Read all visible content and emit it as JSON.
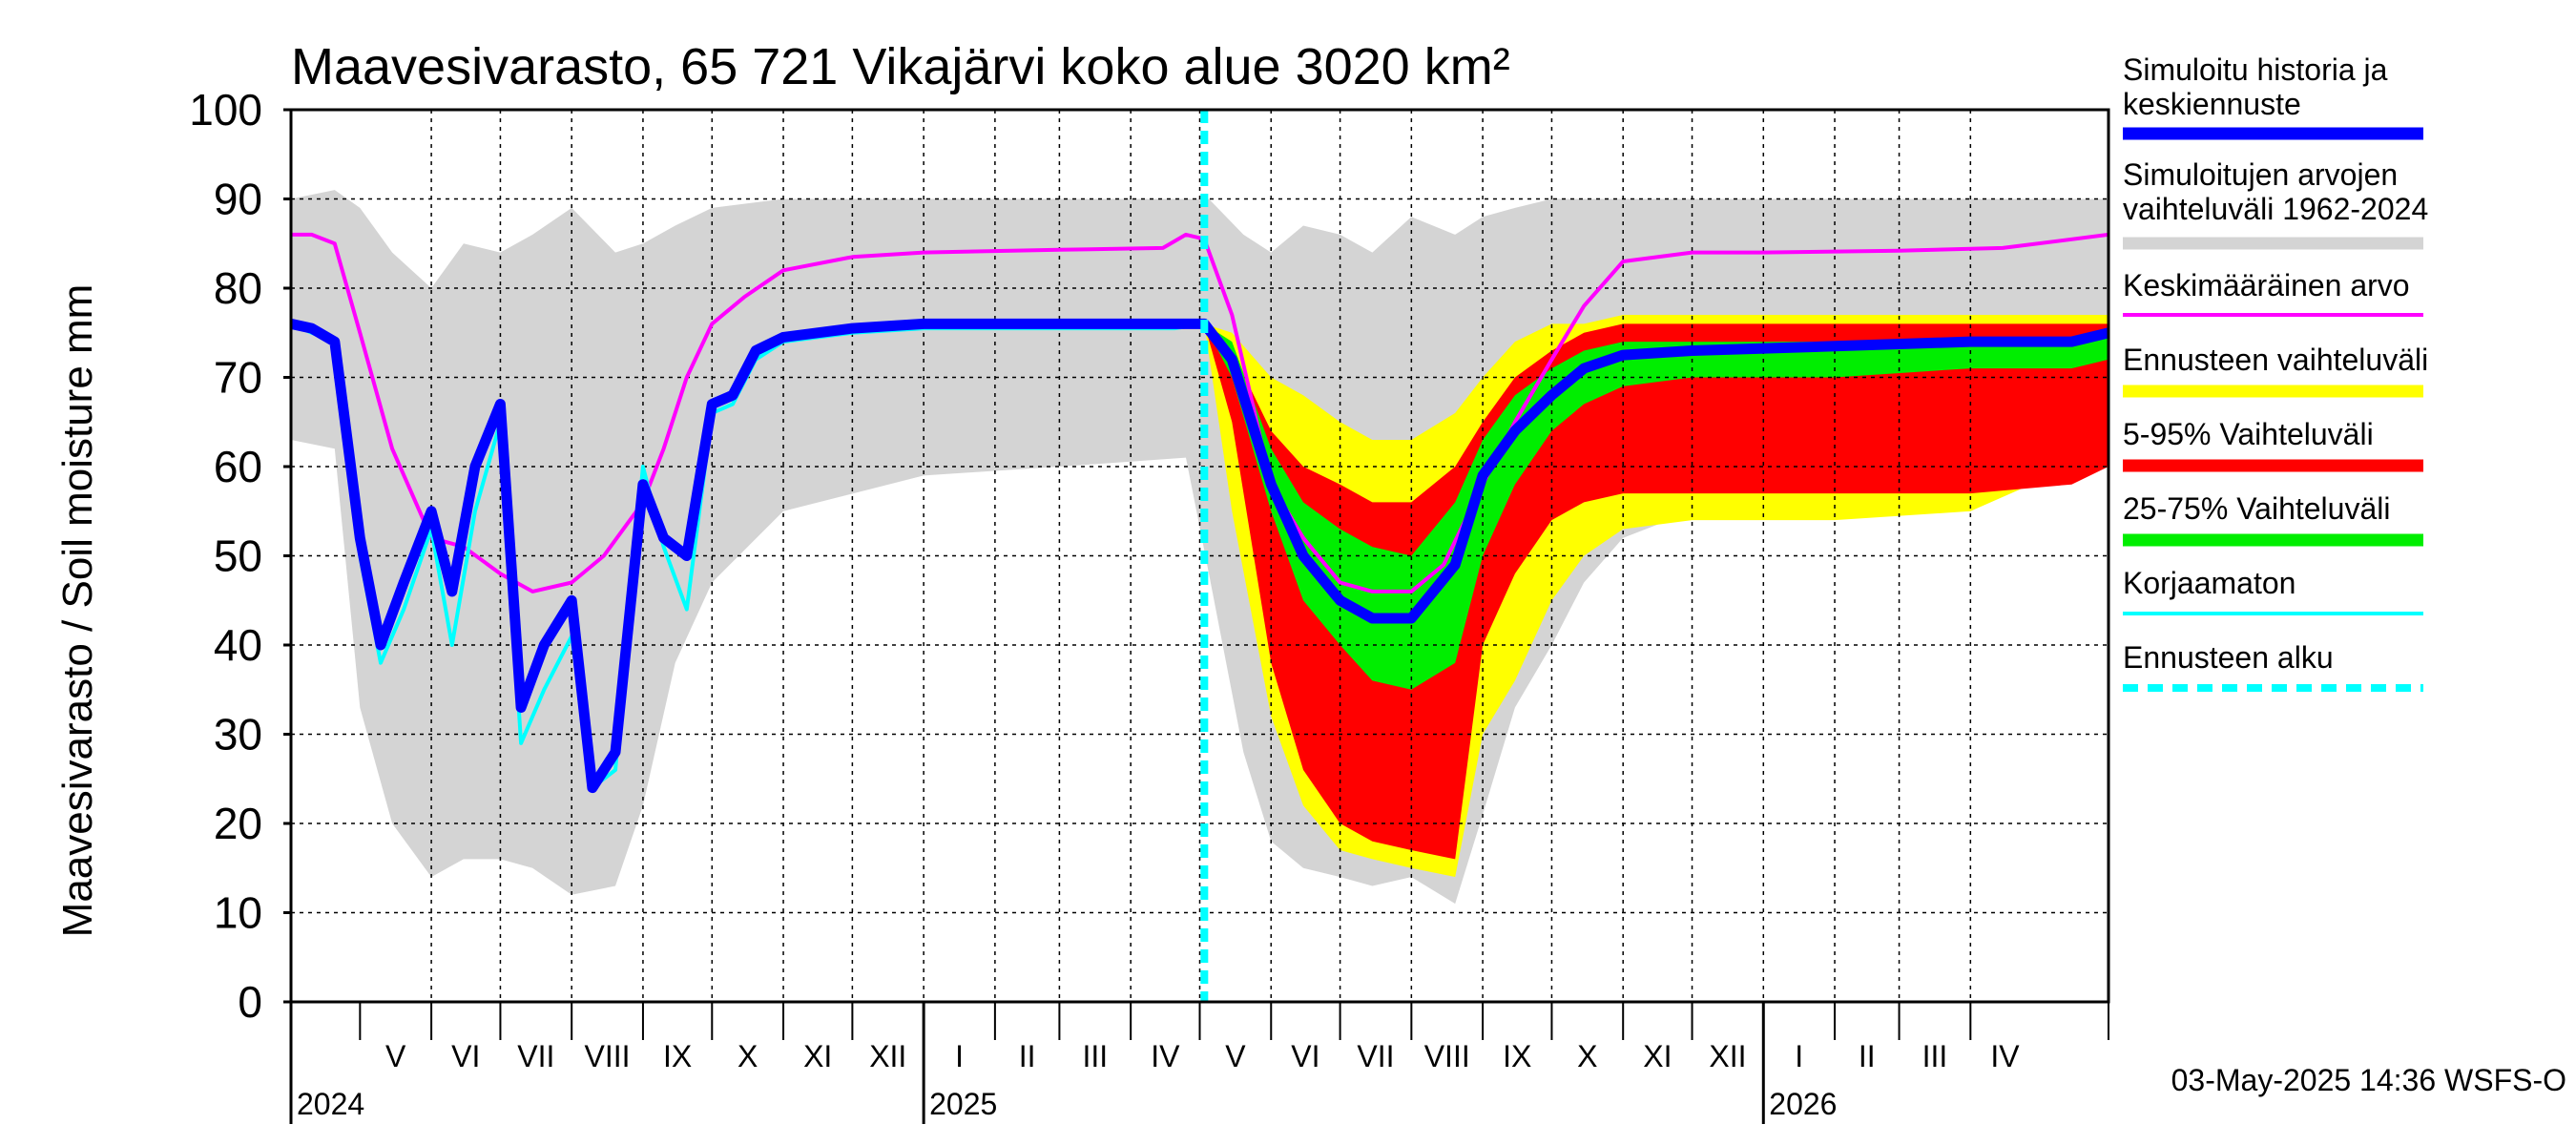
{
  "chart_data": {
    "type": "area",
    "title": "Maavesivarasto, 65 721 Vikajärvi koko alue 3020 km²",
    "ylabel": "Maavesivarasto / Soil moisture   mm",
    "ylim": [
      0,
      100
    ],
    "yticks": [
      0,
      10,
      20,
      30,
      40,
      50,
      60,
      70,
      80,
      90,
      100
    ],
    "xlim": [
      "2024-04-01",
      "2026-05-31"
    ],
    "forecast_start": "2025-05-03",
    "months": [
      {
        "label": "V",
        "start": "2024-05-01",
        "end": "2024-06-01"
      },
      {
        "label": "VI",
        "start": "2024-06-01",
        "end": "2024-07-01"
      },
      {
        "label": "VII",
        "start": "2024-07-01",
        "end": "2024-08-01"
      },
      {
        "label": "VIII",
        "start": "2024-08-01",
        "end": "2024-09-01"
      },
      {
        "label": "IX",
        "start": "2024-09-01",
        "end": "2024-10-01"
      },
      {
        "label": "X",
        "start": "2024-10-01",
        "end": "2024-11-01"
      },
      {
        "label": "XI",
        "start": "2024-11-01",
        "end": "2024-12-01"
      },
      {
        "label": "XII",
        "start": "2024-12-01",
        "end": "2025-01-01"
      },
      {
        "label": "I",
        "start": "2025-01-01",
        "end": "2025-02-01"
      },
      {
        "label": "II",
        "start": "2025-02-01",
        "end": "2025-03-01"
      },
      {
        "label": "III",
        "start": "2025-03-01",
        "end": "2025-04-01"
      },
      {
        "label": "IV",
        "start": "2025-04-01",
        "end": "2025-05-01"
      },
      {
        "label": "V",
        "start": "2025-05-01",
        "end": "2025-06-01"
      },
      {
        "label": "VI",
        "start": "2025-06-01",
        "end": "2025-07-01"
      },
      {
        "label": "VII",
        "start": "2025-07-01",
        "end": "2025-08-01"
      },
      {
        "label": "VIII",
        "start": "2025-08-01",
        "end": "2025-09-01"
      },
      {
        "label": "IX",
        "start": "2025-09-01",
        "end": "2025-10-01"
      },
      {
        "label": "X",
        "start": "2025-10-01",
        "end": "2025-11-01"
      },
      {
        "label": "XI",
        "start": "2025-11-01",
        "end": "2025-12-01"
      },
      {
        "label": "XII",
        "start": "2025-12-01",
        "end": "2026-01-01"
      },
      {
        "label": "I",
        "start": "2026-01-01",
        "end": "2026-02-01"
      },
      {
        "label": "II",
        "start": "2026-02-01",
        "end": "2026-03-01"
      },
      {
        "label": "III",
        "start": "2026-03-01",
        "end": "2026-04-01"
      },
      {
        "label": "IV",
        "start": "2026-04-01",
        "end": "2026-05-01"
      }
    ],
    "years": [
      {
        "label": "2024",
        "date": "2024-04-01"
      },
      {
        "label": "2025",
        "date": "2025-01-01"
      },
      {
        "label": "2026",
        "date": "2026-01-01"
      }
    ],
    "bands": [
      {
        "name": "Simuloitujen arvojen vaihteluväli 1962-2024",
        "color": "#d4d4d4",
        "x": [
          "2024-04-01",
          "2024-04-20",
          "2024-05-01",
          "2024-05-15",
          "2024-06-01",
          "2024-06-15",
          "2024-07-01",
          "2024-07-15",
          "2024-08-01",
          "2024-08-20",
          "2024-09-01",
          "2024-09-15",
          "2024-10-01",
          "2024-11-01",
          "2025-01-01",
          "2025-03-01",
          "2025-04-25",
          "2025-05-05",
          "2025-05-20",
          "2025-06-01",
          "2025-06-15",
          "2025-07-01",
          "2025-07-15",
          "2025-08-01",
          "2025-08-20",
          "2025-09-01",
          "2025-09-15",
          "2025-10-01",
          "2025-10-15",
          "2025-11-01",
          "2025-12-01",
          "2026-02-01",
          "2026-04-01",
          "2026-05-31"
        ],
        "lower": [
          63,
          62,
          33,
          20,
          14,
          16,
          16,
          15,
          12,
          13,
          22,
          38,
          47,
          55,
          59,
          60,
          61,
          48,
          28,
          18,
          15,
          14,
          13,
          14,
          11,
          21,
          33,
          40,
          47,
          52,
          55,
          56,
          58,
          61
        ],
        "upper": [
          90,
          91,
          89,
          84,
          80,
          85,
          84,
          86,
          89,
          84,
          85,
          87,
          89,
          90,
          90,
          90,
          90,
          90,
          86,
          84,
          87,
          86,
          84,
          88,
          86,
          88,
          89,
          90,
          90,
          90,
          90,
          90,
          90,
          90
        ]
      },
      {
        "name": "Ennusteen vaihteluväli",
        "color": "#ffff00",
        "x": [
          "2025-05-03",
          "2025-05-15",
          "2025-06-01",
          "2025-06-15",
          "2025-07-01",
          "2025-07-15",
          "2025-08-01",
          "2025-08-20",
          "2025-09-01",
          "2025-09-15",
          "2025-10-01",
          "2025-10-15",
          "2025-11-01",
          "2025-12-01",
          "2026-02-01",
          "2026-04-01",
          "2026-05-15",
          "2026-05-31"
        ],
        "lower": [
          76,
          55,
          32,
          22,
          17,
          16,
          15,
          14,
          30,
          36,
          45,
          50,
          53,
          54,
          54,
          55,
          60,
          65
        ],
        "upper": [
          76,
          75,
          70,
          68,
          65,
          63,
          63,
          66,
          70,
          74,
          76,
          76,
          77,
          77,
          77,
          77,
          77,
          77
        ]
      },
      {
        "name": "5-95% Vaihteluväli",
        "color": "#ff0000",
        "x": [
          "2025-05-03",
          "2025-05-15",
          "2025-06-01",
          "2025-06-15",
          "2025-07-01",
          "2025-07-15",
          "2025-08-01",
          "2025-08-20",
          "2025-09-01",
          "2025-09-15",
          "2025-10-01",
          "2025-10-15",
          "2025-11-01",
          "2025-12-01",
          "2026-02-01",
          "2026-04-01",
          "2026-05-15",
          "2026-05-31"
        ],
        "lower": [
          76,
          65,
          38,
          26,
          20,
          18,
          17,
          16,
          40,
          48,
          54,
          56,
          57,
          57,
          57,
          57,
          58,
          60
        ],
        "upper": [
          76,
          73,
          64,
          60,
          58,
          56,
          56,
          60,
          65,
          70,
          73,
          75,
          76,
          76,
          76,
          76,
          76,
          76
        ]
      },
      {
        "name": "25-75% Vaihteluväli",
        "color": "#00ee00",
        "x": [
          "2025-05-03",
          "2025-05-15",
          "2025-06-01",
          "2025-06-15",
          "2025-07-01",
          "2025-07-15",
          "2025-08-01",
          "2025-08-20",
          "2025-09-01",
          "2025-09-15",
          "2025-10-01",
          "2025-10-15",
          "2025-11-01",
          "2025-12-01",
          "2026-02-01",
          "2026-04-01",
          "2026-05-15",
          "2026-05-31"
        ],
        "lower": [
          76,
          70,
          55,
          45,
          40,
          36,
          35,
          38,
          50,
          58,
          64,
          67,
          69,
          70,
          70,
          71,
          71,
          72
        ],
        "upper": [
          76,
          74,
          62,
          56,
          53,
          51,
          50,
          56,
          63,
          68,
          71,
          73,
          74,
          74,
          74,
          74,
          74,
          75
        ]
      }
    ],
    "series": [
      {
        "name": "Keskimääräinen arvo",
        "color": "#ff00ff",
        "x": [
          "2024-04-01",
          "2024-04-10",
          "2024-04-20",
          "2024-05-01",
          "2024-05-15",
          "2024-06-01",
          "2024-06-15",
          "2024-07-01",
          "2024-07-15",
          "2024-08-01",
          "2024-08-15",
          "2024-09-01",
          "2024-09-10",
          "2024-09-20",
          "2024-10-01",
          "2024-10-15",
          "2024-11-01",
          "2024-12-01",
          "2025-01-01",
          "2025-03-01",
          "2025-04-15",
          "2025-04-25",
          "2025-05-03",
          "2025-05-15",
          "2025-06-01",
          "2025-06-15",
          "2025-07-01",
          "2025-07-15",
          "2025-08-01",
          "2025-08-15",
          "2025-09-01",
          "2025-09-15",
          "2025-10-01",
          "2025-10-15",
          "2025-11-01",
          "2025-12-01",
          "2026-01-01",
          "2026-03-01",
          "2026-04-15",
          "2026-05-31"
        ],
        "y": [
          86,
          86,
          85,
          75,
          62,
          52,
          51,
          48,
          46,
          47,
          50,
          56,
          62,
          70,
          76,
          79,
          82,
          83.5,
          84,
          84.3,
          84.5,
          86,
          85.5,
          77,
          58,
          52,
          47,
          46,
          46,
          49,
          58,
          65,
          72,
          78,
          83,
          84,
          84,
          84.2,
          84.5,
          86
        ]
      },
      {
        "name": "Korjaamaton",
        "color": "#00ffff",
        "x": [
          "2024-04-01",
          "2024-04-10",
          "2024-04-20",
          "2024-05-01",
          "2024-05-10",
          "2024-05-20",
          "2024-06-01",
          "2024-06-10",
          "2024-06-20",
          "2024-07-01",
          "2024-07-10",
          "2024-07-20",
          "2024-08-01",
          "2024-08-10",
          "2024-08-20",
          "2024-09-01",
          "2024-09-10",
          "2024-09-20",
          "2024-10-01",
          "2024-10-10",
          "2024-10-20",
          "2024-11-01",
          "2024-12-01",
          "2025-01-01",
          "2025-03-01",
          "2025-04-20",
          "2025-05-03"
        ],
        "y": [
          76,
          75,
          74,
          50,
          38,
          44,
          53,
          40,
          55,
          65,
          29,
          35,
          41,
          24,
          26,
          60,
          51,
          44,
          66,
          67,
          72,
          74,
          75,
          75.5,
          75.5,
          75.5,
          76
        ]
      },
      {
        "name": "Simuloitu historia ja keskiennuste",
        "color": "#0000ff",
        "x": [
          "2024-04-01",
          "2024-04-10",
          "2024-04-20",
          "2024-05-01",
          "2024-05-10",
          "2024-05-20",
          "2024-06-01",
          "2024-06-10",
          "2024-06-20",
          "2024-07-01",
          "2024-07-10",
          "2024-07-20",
          "2024-08-01",
          "2024-08-10",
          "2024-08-20",
          "2024-09-01",
          "2024-09-10",
          "2024-09-20",
          "2024-10-01",
          "2024-10-10",
          "2024-10-20",
          "2024-11-01",
          "2024-12-01",
          "2025-01-01",
          "2025-03-01",
          "2025-04-20",
          "2025-05-03",
          "2025-05-15",
          "2025-06-01",
          "2025-06-15",
          "2025-07-01",
          "2025-07-15",
          "2025-08-01",
          "2025-08-20",
          "2025-09-01",
          "2025-09-15",
          "2025-10-01",
          "2025-10-15",
          "2025-11-01",
          "2025-12-01",
          "2026-02-01",
          "2026-04-01",
          "2026-05-15",
          "2026-05-31"
        ],
        "y": [
          76,
          75.5,
          74,
          52,
          40,
          47,
          55,
          46,
          60,
          67,
          33,
          40,
          45,
          24,
          28,
          58,
          52,
          50,
          67,
          68,
          73,
          74.5,
          75.5,
          76,
          76,
          76,
          76,
          72,
          58,
          50,
          45,
          43,
          43,
          49,
          59,
          64,
          68,
          71,
          72.5,
          73,
          73.5,
          74,
          74,
          75
        ]
      }
    ],
    "legend": [
      {
        "label_lines": [
          "Simuloitu historia ja",
          "keskiennuste"
        ],
        "color": "#0000ff",
        "style": "thick"
      },
      {
        "label_lines": [
          "Simuloitujen arvojen",
          "vaihteluväli 1962-2024"
        ],
        "color": "#d4d4d4",
        "style": "thick"
      },
      {
        "label_lines": [
          "Keskimääräinen arvo"
        ],
        "color": "#ff00ff",
        "style": "thin"
      },
      {
        "label_lines": [
          "Ennusteen vaihteluväli"
        ],
        "color": "#ffff00",
        "style": "thick"
      },
      {
        "label_lines": [
          "5-95% Vaihteluväli"
        ],
        "color": "#ff0000",
        "style": "thick"
      },
      {
        "label_lines": [
          "25-75% Vaihteluväli"
        ],
        "color": "#00ee00",
        "style": "thick"
      },
      {
        "label_lines": [
          "Korjaamaton"
        ],
        "color": "#00ffff",
        "style": "thin"
      },
      {
        "label_lines": [
          "Ennusteen alku"
        ],
        "color": "#00ffff",
        "style": "dashed"
      }
    ],
    "legend_placement": "right",
    "grid": true,
    "footer": "03-May-2025 14:36 WSFS-O"
  }
}
